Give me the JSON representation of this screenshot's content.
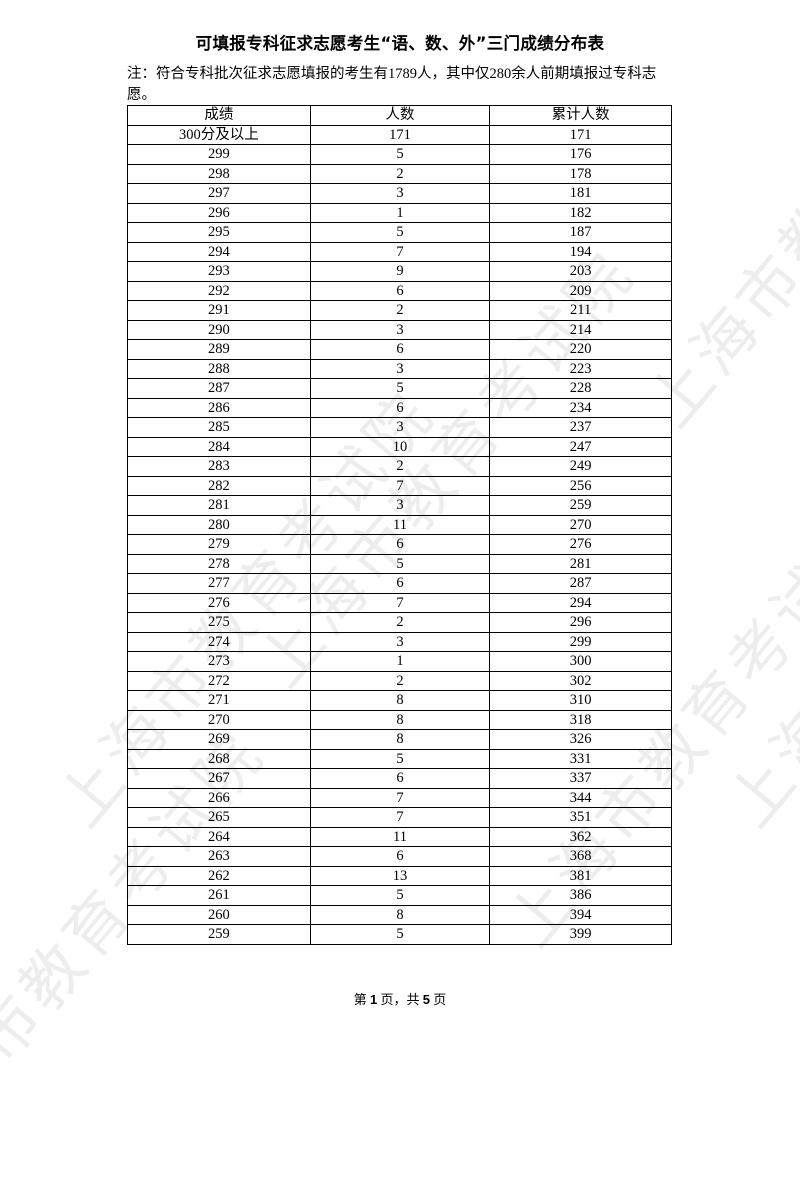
{
  "title": "可填报专科征求志愿考生“语、数、外”三门成绩分布表",
  "note": "注：符合专科批次征求志愿填报的考生有1789人，其中仅280余人前期填报过专科志愿。",
  "table": {
    "headers": [
      "成绩",
      "人数",
      "累计人数"
    ],
    "rows": [
      [
        "300分及以上",
        "171",
        "171"
      ],
      [
        "299",
        "5",
        "176"
      ],
      [
        "298",
        "2",
        "178"
      ],
      [
        "297",
        "3",
        "181"
      ],
      [
        "296",
        "1",
        "182"
      ],
      [
        "295",
        "5",
        "187"
      ],
      [
        "294",
        "7",
        "194"
      ],
      [
        "293",
        "9",
        "203"
      ],
      [
        "292",
        "6",
        "209"
      ],
      [
        "291",
        "2",
        "211"
      ],
      [
        "290",
        "3",
        "214"
      ],
      [
        "289",
        "6",
        "220"
      ],
      [
        "288",
        "3",
        "223"
      ],
      [
        "287",
        "5",
        "228"
      ],
      [
        "286",
        "6",
        "234"
      ],
      [
        "285",
        "3",
        "237"
      ],
      [
        "284",
        "10",
        "247"
      ],
      [
        "283",
        "2",
        "249"
      ],
      [
        "282",
        "7",
        "256"
      ],
      [
        "281",
        "3",
        "259"
      ],
      [
        "280",
        "11",
        "270"
      ],
      [
        "279",
        "6",
        "276"
      ],
      [
        "278",
        "5",
        "281"
      ],
      [
        "277",
        "6",
        "287"
      ],
      [
        "276",
        "7",
        "294"
      ],
      [
        "275",
        "2",
        "296"
      ],
      [
        "274",
        "3",
        "299"
      ],
      [
        "273",
        "1",
        "300"
      ],
      [
        "272",
        "2",
        "302"
      ],
      [
        "271",
        "8",
        "310"
      ],
      [
        "270",
        "8",
        "318"
      ],
      [
        "269",
        "8",
        "326"
      ],
      [
        "268",
        "5",
        "331"
      ],
      [
        "267",
        "6",
        "337"
      ],
      [
        "266",
        "7",
        "344"
      ],
      [
        "265",
        "7",
        "351"
      ],
      [
        "264",
        "11",
        "362"
      ],
      [
        "263",
        "6",
        "368"
      ],
      [
        "262",
        "13",
        "381"
      ],
      [
        "261",
        "5",
        "386"
      ],
      [
        "260",
        "8",
        "394"
      ],
      [
        "259",
        "5",
        "399"
      ]
    ]
  },
  "footer": {
    "prefix": "第 ",
    "page": "1",
    "middle": " 页，共 ",
    "total": "5",
    "suffix": " 页"
  },
  "watermark": "上海市教育考试院"
}
